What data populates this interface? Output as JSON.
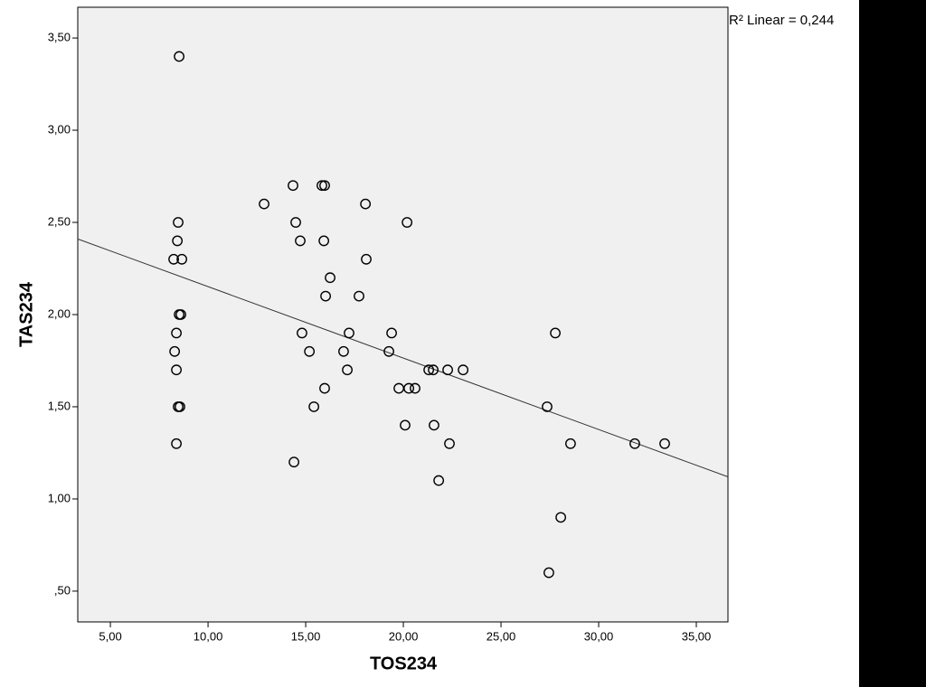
{
  "chart_data": {
    "type": "scatter",
    "x_label": "TOS234",
    "y_label": "TAS234",
    "annotation": "R² Linear = 0,244",
    "xlim": [
      3.33,
      36.62
    ],
    "ylim": [
      0.333,
      3.667
    ],
    "xticks": [
      {
        "value": 5,
        "label": "5,00"
      },
      {
        "value": 10,
        "label": "10,00"
      },
      {
        "value": 15,
        "label": "15,00"
      },
      {
        "value": 20,
        "label": "20,00"
      },
      {
        "value": 25,
        "label": "25,00"
      },
      {
        "value": 30,
        "label": "30,00"
      },
      {
        "value": 35,
        "label": "35,00"
      }
    ],
    "yticks": [
      {
        "value": 0.5,
        "label": ",50"
      },
      {
        "value": 1,
        "label": "1,00"
      },
      {
        "value": 1.5,
        "label": "1,50"
      },
      {
        "value": 2,
        "label": "2,00"
      },
      {
        "value": 2.5,
        "label": "2,50"
      },
      {
        "value": 3,
        "label": "3,00"
      },
      {
        "value": 3.5,
        "label": "3,50"
      }
    ],
    "color": "#000000",
    "x": [
      8.52,
      12.87,
      14.35,
      15.83,
      15.97,
      18.06,
      14.49,
      20.19,
      8.47,
      8.43,
      14.72,
      15.93,
      8.24,
      8.66,
      18.1,
      16.25,
      16.02,
      17.73,
      8.52,
      8.61,
      8.38,
      14.81,
      17.22,
      19.4,
      27.78,
      8.29,
      15.19,
      16.94,
      19.26,
      8.38,
      17.13,
      21.3,
      21.53,
      22.27,
      23.06,
      15.97,
      19.77,
      20.28,
      20.6,
      8.47,
      8.56,
      15.42,
      27.36,
      20.09,
      21.57,
      8.38,
      22.36,
      28.56,
      31.85,
      33.38,
      14.4,
      21.81,
      28.06,
      27.45
    ],
    "values": [
      3.4,
      2.6,
      2.7,
      2.7,
      2.7,
      2.6,
      2.5,
      2.5,
      2.5,
      2.4,
      2.4,
      2.4,
      2.3,
      2.3,
      2.3,
      2.2,
      2.1,
      2.1,
      2.0,
      2.0,
      1.9,
      1.9,
      1.9,
      1.9,
      1.9,
      1.8,
      1.8,
      1.8,
      1.8,
      1.7,
      1.7,
      1.7,
      1.7,
      1.7,
      1.7,
      1.6,
      1.6,
      1.6,
      1.6,
      1.5,
      1.5,
      1.5,
      1.5,
      1.4,
      1.4,
      1.3,
      1.3,
      1.3,
      1.3,
      1.3,
      1.2,
      1.1,
      0.9,
      0.6
    ],
    "fit_line": {
      "x": [
        3.33,
        36.62
      ],
      "y": [
        2.41,
        1.12
      ]
    }
  }
}
